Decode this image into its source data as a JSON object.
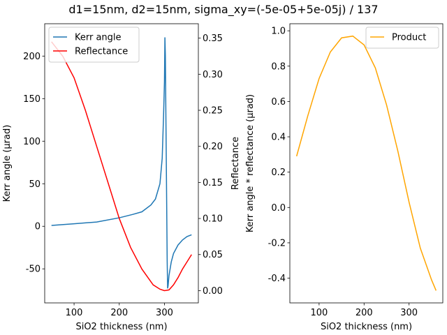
{
  "figure": {
    "title": "d1=15nm, d2=15nm, sigma_xy=(-5e-05+5e-05j) / 137"
  },
  "chart_data": [
    {
      "type": "line",
      "panel": "left",
      "xlabel": "SiO2 thickness (nm)",
      "ylabel": "Kerr angle (µrad)",
      "y2label": "Reflectance",
      "xlim": [
        35,
        375
      ],
      "ylim": [
        -90,
        238
      ],
      "y2lim": [
        -0.017,
        0.37
      ],
      "xticks": [
        100,
        200,
        300
      ],
      "yticks": [
        -50,
        0,
        50,
        100,
        150,
        200
      ],
      "y2ticks": [
        0.0,
        0.05,
        0.1,
        0.15,
        0.2,
        0.25,
        0.3,
        0.35
      ],
      "legend_position": "top-left",
      "series": [
        {
          "name": "Kerr angle",
          "axis": "left",
          "color": "#1f77b4",
          "x": [
            50,
            100,
            150,
            200,
            230,
            250,
            270,
            280,
            290,
            295,
            298,
            300,
            301,
            302,
            303,
            304,
            305,
            306,
            307,
            308,
            310,
            315,
            320,
            330,
            340,
            350,
            360
          ],
          "y": [
            1,
            3,
            5,
            10,
            14,
            17,
            25,
            32,
            50,
            80,
            130,
            170,
            222,
            200,
            140,
            80,
            20,
            -40,
            -73,
            -70,
            -58,
            -42,
            -32,
            -22,
            -16,
            -12,
            -10
          ]
        },
        {
          "name": "Reflectance",
          "axis": "right",
          "color": "#ff0000",
          "x": [
            50,
            75,
            100,
            125,
            150,
            175,
            200,
            225,
            250,
            275,
            290,
            300,
            310,
            320,
            330,
            340,
            350,
            360
          ],
          "y": [
            0.345,
            0.325,
            0.295,
            0.25,
            0.2,
            0.15,
            0.1,
            0.06,
            0.03,
            0.008,
            0.002,
            0.0,
            0.001,
            0.008,
            0.018,
            0.03,
            0.04,
            0.05
          ]
        }
      ]
    },
    {
      "type": "line",
      "panel": "right",
      "xlabel": "SiO2 thickness (nm)",
      "ylabel": "Kerr angle * reflectance (µrad)",
      "xlim": [
        35,
        375
      ],
      "ylim": [
        -0.54,
        1.04
      ],
      "xticks": [
        100,
        200,
        300
      ],
      "yticks": [
        -0.4,
        -0.2,
        0.0,
        0.2,
        0.4,
        0.6,
        0.8,
        1.0
      ],
      "legend_position": "top-right",
      "series": [
        {
          "name": "Product",
          "color": "#ffa500",
          "x": [
            50,
            75,
            100,
            125,
            150,
            175,
            200,
            225,
            250,
            275,
            300,
            325,
            350,
            360
          ],
          "y": [
            0.29,
            0.52,
            0.73,
            0.88,
            0.96,
            0.97,
            0.92,
            0.79,
            0.58,
            0.32,
            0.03,
            -0.23,
            -0.41,
            -0.47
          ]
        }
      ]
    }
  ]
}
